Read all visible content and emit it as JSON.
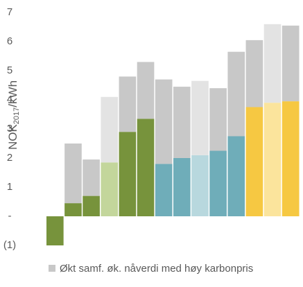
{
  "chart_data": {
    "type": "stacked-bar",
    "ylabel": {
      "main": "NOK",
      "sub": "2017",
      "rest": "/kWh"
    },
    "categories": [
      null,
      null,
      null,
      null,
      null,
      null,
      null,
      null,
      null,
      null,
      null,
      null,
      null,
      null
    ],
    "series": [
      {
        "values": [
          -1,
          0.45,
          0.7,
          1.85,
          2.9,
          3.35,
          1.8,
          2.0,
          2.1,
          2.25,
          2.75,
          3.75,
          3.9,
          3.95
        ],
        "colors": [
          "#77933c",
          "#77933c",
          "#77933c",
          "#c3d69b",
          "#77933c",
          "#77933c",
          "#6fadb9",
          "#6fadb9",
          "#b8d8de",
          "#6fadb9",
          "#6fadb9",
          "#f6c842",
          "#fbe49c",
          "#f6c842"
        ]
      },
      {
        "name": "Økt samf. øk. nåverdi med høy karbonpris",
        "values": [
          null,
          2.05,
          1.25,
          2.25,
          1.9,
          1.95,
          2.9,
          2.45,
          2.55,
          2.15,
          2.9,
          2.3,
          2.7,
          2.6
        ],
        "color": "#c8c8c8",
        "colors": [
          "#c8c8c8",
          "#c8c8c8",
          "#c8c8c8",
          "#e3e3e3",
          "#c8c8c8",
          "#c8c8c8",
          "#c8c8c8",
          "#c8c8c8",
          "#e3e3e3",
          "#c8c8c8",
          "#c8c8c8",
          "#c8c8c8",
          "#e3e3e3",
          "#c8c8c8"
        ]
      }
    ],
    "ylim": [
      -1,
      7
    ],
    "yticks": [
      {
        "value": -1,
        "label": "(1)"
      },
      {
        "value": 0,
        "label": "-"
      },
      1,
      2,
      3,
      4,
      5,
      6,
      7
    ],
    "legend": "bottom"
  }
}
